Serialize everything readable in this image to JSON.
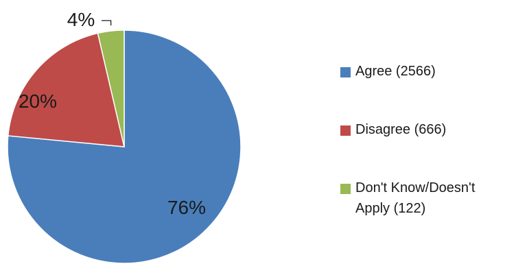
{
  "chart_data": {
    "type": "pie",
    "title": "",
    "legend_position": "right",
    "slices": [
      {
        "label": "Agree (2566)",
        "legend_lines": [
          "Agree (2566)"
        ],
        "count": 2566,
        "percent_label": "76%",
        "color": "#4a7ebb"
      },
      {
        "label": "Disagree (666)",
        "legend_lines": [
          "Disagree (666)"
        ],
        "count": 666,
        "percent_label": "20%",
        "color": "#be4b48"
      },
      {
        "label": "Don't Know/Doesn't Apply (122)",
        "legend_lines": [
          "Don't Know/Doesn't",
          "Apply (122)"
        ],
        "count": 122,
        "percent_label": "4%",
        "color": "#98b954"
      }
    ]
  }
}
